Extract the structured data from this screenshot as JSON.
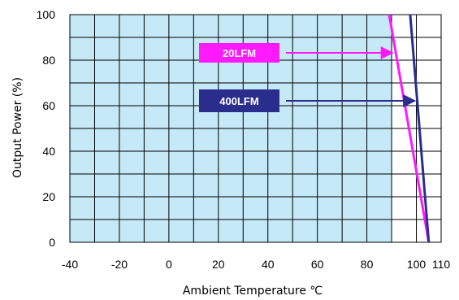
{
  "chart_data": {
    "type": "line",
    "xlabel": "Ambient Temperature ℃",
    "ylabel": "Output Power (%)",
    "xlim": [
      -40,
      110
    ],
    "ylim": [
      0,
      100
    ],
    "x_ticks": [
      "-40",
      "-20",
      "0",
      "20",
      "40",
      "60",
      "80",
      "100",
      "110"
    ],
    "y_ticks": [
      "0",
      "20",
      "40",
      "60",
      "80",
      "100"
    ],
    "x_grid_step": 10,
    "y_grid_step": 10,
    "grid": true,
    "safe_area": {
      "x": [
        -40,
        90
      ],
      "y": [
        0,
        100
      ],
      "color": "#c5e9f6"
    },
    "series": [
      {
        "name": "20LFM",
        "color": "#ff19ff",
        "x": [
          89,
          105
        ],
        "y": [
          100,
          0
        ]
      },
      {
        "name": "400LFM",
        "color": "#2a2d8c",
        "x": [
          97.5,
          105
        ],
        "y": [
          100,
          0
        ]
      }
    ],
    "annotations": [
      {
        "text": "20LFM",
        "color": "#ff19ff",
        "points_to": [
          91,
          84
        ]
      },
      {
        "text": "400LFM",
        "color": "#2a2d8c",
        "points_to": [
          100,
          62
        ]
      }
    ]
  }
}
